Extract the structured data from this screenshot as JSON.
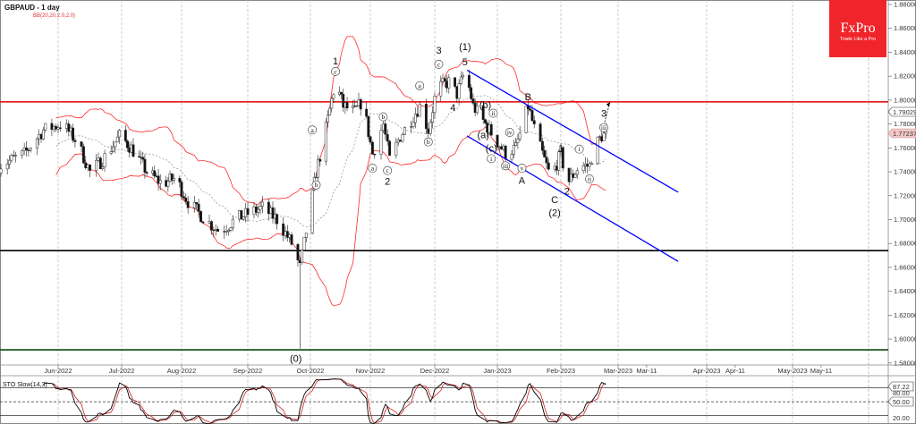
{
  "header": {
    "symbol_title": "GBPAUD - 1 day",
    "indicator_label": "BB(20,20,2.0,2.0)"
  },
  "logo": {
    "brand": "FxPro",
    "tagline": "Trade Like a Pro",
    "color": "#f0252b"
  },
  "stochastic": {
    "label": "STO Slow(14,3)",
    "current_value": "87.22",
    "levels": [
      "80.00",
      "50.00",
      "20.00"
    ]
  },
  "price_tags": {
    "upper_band": "1.79029",
    "last_price": "1.77237"
  },
  "colors": {
    "bollinger": "#ff2a2a",
    "resistance": "#e00000",
    "support": "#000000",
    "base_line": "#0a4a0a",
    "channel": "#0000ff",
    "stoch_main": "#000000",
    "stoch_signal": "#d02020",
    "ma": "#7a7a7a"
  },
  "chart_data": {
    "type": "candlestick",
    "title": "GBPAUD - 1 day",
    "ylim": [
      1.575,
      1.885
    ],
    "y_ticks": [
      "1.88000",
      "1.86000",
      "1.84000",
      "1.82000",
      "1.80000",
      "1.78000",
      "1.76000",
      "1.74000",
      "1.72000",
      "1.70000",
      "1.68000",
      "1.66000",
      "1.64000",
      "1.62000",
      "1.60000",
      "1.58000"
    ],
    "x_ticks": [
      {
        "date": "2022-06-01",
        "label": "Jun-2022",
        "grid": true
      },
      {
        "date": "2022-07-01",
        "label": "Jul-2022",
        "grid": true
      },
      {
        "date": "2022-08-01",
        "label": "Aug-2022",
        "grid": true
      },
      {
        "date": "2022-09-01",
        "label": "Sep-2022",
        "grid": true
      },
      {
        "date": "2022-10-01",
        "label": "Oct-2022",
        "grid": true
      },
      {
        "date": "2022-11-01",
        "label": "Nov-2022",
        "grid": true
      },
      {
        "date": "2022-12-01",
        "label": "Dec-2022",
        "grid": true
      },
      {
        "date": "2023-01-01",
        "label": "Jan-2023",
        "grid": true
      },
      {
        "date": "2023-02-01",
        "label": "Feb-2023",
        "grid": true
      },
      {
        "date": "2023-03-01",
        "label": "Mar-2023",
        "grid": true
      },
      {
        "date": "2023-03-11",
        "label": "Mar-11",
        "grid": false
      },
      {
        "date": "2023-04-01",
        "label": "Apr-2023",
        "grid": true
      },
      {
        "date": "2023-04-11",
        "label": "Apr-11",
        "grid": false
      },
      {
        "date": "2023-05-01",
        "label": "May-2023",
        "grid": true
      },
      {
        "date": "2023-05-11",
        "label": "May-11",
        "grid": false
      }
    ],
    "approx_close_path": [
      [
        "2022-05-04",
        1.745
      ],
      [
        "2022-05-16",
        1.755
      ],
      [
        "2022-05-25",
        1.775
      ],
      [
        "2022-06-03",
        1.78
      ],
      [
        "2022-06-10",
        1.765
      ],
      [
        "2022-06-16",
        1.74
      ],
      [
        "2022-06-22",
        1.75
      ],
      [
        "2022-06-30",
        1.77
      ],
      [
        "2022-07-06",
        1.76
      ],
      [
        "2022-07-14",
        1.74
      ],
      [
        "2022-07-22",
        1.73
      ],
      [
        "2022-07-29",
        1.735
      ],
      [
        "2022-08-04",
        1.715
      ],
      [
        "2022-08-12",
        1.7
      ],
      [
        "2022-08-19",
        1.69
      ],
      [
        "2022-08-26",
        1.7
      ],
      [
        "2022-09-01",
        1.705
      ],
      [
        "2022-09-08",
        1.71
      ],
      [
        "2022-09-15",
        1.7
      ],
      [
        "2022-09-22",
        1.68
      ],
      [
        "2022-09-26",
        1.66
      ],
      [
        "2022-09-28",
        1.68
      ],
      [
        "2022-10-04",
        1.74
      ],
      [
        "2022-10-07",
        1.76
      ],
      [
        "2022-10-12",
        1.8
      ],
      [
        "2022-10-14",
        1.815
      ],
      [
        "2022-10-18",
        1.795
      ],
      [
        "2022-10-24",
        1.79
      ],
      [
        "2022-10-28",
        1.8
      ],
      [
        "2022-11-02",
        1.755
      ],
      [
        "2022-11-07",
        1.78
      ],
      [
        "2022-11-10",
        1.75
      ],
      [
        "2022-11-15",
        1.77
      ],
      [
        "2022-11-24",
        1.795
      ],
      [
        "2022-11-28",
        1.775
      ],
      [
        "2022-12-02",
        1.81
      ],
      [
        "2022-12-08",
        1.815
      ],
      [
        "2022-12-12",
        1.805
      ],
      [
        "2022-12-16",
        1.825
      ],
      [
        "2022-12-20",
        1.795
      ],
      [
        "2022-12-28",
        1.775
      ],
      [
        "2023-01-05",
        1.755
      ],
      [
        "2023-01-10",
        1.76
      ],
      [
        "2023-01-16",
        1.795
      ],
      [
        "2023-01-20",
        1.77
      ],
      [
        "2023-01-27",
        1.735
      ],
      [
        "2023-02-01",
        1.755
      ],
      [
        "2023-02-04",
        1.73
      ],
      [
        "2023-02-10",
        1.745
      ],
      [
        "2023-02-15",
        1.745
      ],
      [
        "2023-02-17",
        1.76
      ],
      [
        "2023-02-21",
        1.77
      ],
      [
        "2023-02-24",
        1.77237
      ]
    ],
    "spike_low": {
      "date": "2022-09-26",
      "price": 1.592
    },
    "bollinger": {
      "period": 20,
      "deviations": 2
    },
    "horizontal_levels": [
      {
        "price": 1.7985,
        "color": "#e00000"
      },
      {
        "price": 1.674,
        "color": "#000000"
      },
      {
        "price": 1.591,
        "color": "#0a4a0a"
      }
    ],
    "channel": [
      {
        "from": [
          "2022-12-17",
          1.825
        ],
        "to": [
          "2023-03-22",
          1.723
        ]
      },
      {
        "from": [
          "2022-12-17",
          1.77
        ],
        "to": [
          "2023-03-22",
          1.665
        ]
      }
    ],
    "projection_arrow": {
      "from": [
        "2023-02-22",
        1.779
      ],
      "to": [
        "2023-02-25",
        1.798
      ]
    },
    "wave_labels": [
      {
        "text": "1",
        "date": "2022-10-14",
        "price": 1.833,
        "circled": false
      },
      {
        "text": "c",
        "date": "2022-10-14",
        "price": 1.824,
        "circled": true
      },
      {
        "text": "a",
        "date": "2022-10-02",
        "price": 1.775,
        "circled": true
      },
      {
        "text": "b",
        "date": "2022-10-04",
        "price": 1.729,
        "circled": true
      },
      {
        "text": "(0)",
        "date": "2022-09-24",
        "price": 1.584,
        "circled": false
      },
      {
        "text": "a",
        "date": "2022-11-02",
        "price": 1.743,
        "circled": true
      },
      {
        "text": "b",
        "date": "2022-11-07",
        "price": 1.786,
        "circled": true
      },
      {
        "text": "c",
        "date": "2022-11-09",
        "price": 1.741,
        "circled": true
      },
      {
        "text": "2",
        "date": "2022-11-09",
        "price": 1.732,
        "circled": false
      },
      {
        "text": "a",
        "date": "2022-11-24",
        "price": 1.812,
        "circled": true
      },
      {
        "text": "b",
        "date": "2022-11-28",
        "price": 1.765,
        "circled": true
      },
      {
        "text": "3",
        "date": "2022-12-03",
        "price": 1.842,
        "circled": false
      },
      {
        "text": "c",
        "date": "2022-12-03",
        "price": 1.83,
        "circled": true
      },
      {
        "text": "(1)",
        "date": "2022-12-16",
        "price": 1.845,
        "circled": false
      },
      {
        "text": "5",
        "date": "2022-12-16",
        "price": 1.832,
        "circled": false
      },
      {
        "text": "4",
        "date": "2022-12-10",
        "price": 1.794,
        "circled": false
      },
      {
        "text": "(b)",
        "date": "2022-12-26",
        "price": 1.796,
        "circled": false
      },
      {
        "text": "ii",
        "date": "2022-12-30",
        "price": 1.789,
        "circled": true
      },
      {
        "text": "(a)",
        "date": "2022-12-25",
        "price": 1.771,
        "circled": false
      },
      {
        "text": "(c)",
        "date": "2022-12-29",
        "price": 1.76,
        "circled": false
      },
      {
        "text": "i",
        "date": "2022-12-29",
        "price": 1.751,
        "circled": true
      },
      {
        "text": "iii",
        "date": "2023-01-05",
        "price": 1.745,
        "circled": true
      },
      {
        "text": "iv",
        "date": "2023-01-07",
        "price": 1.773,
        "circled": true
      },
      {
        "text": "v",
        "date": "2023-01-13",
        "price": 1.743,
        "circled": true
      },
      {
        "text": "A",
        "date": "2023-01-13",
        "price": 1.733,
        "circled": false
      },
      {
        "text": "B",
        "date": "2023-01-16",
        "price": 1.803,
        "circled": false
      },
      {
        "text": "1",
        "date": "2023-02-01",
        "price": 1.76,
        "circled": false
      },
      {
        "text": "C",
        "date": "2023-01-29",
        "price": 1.717,
        "circled": false
      },
      {
        "text": "(2)",
        "date": "2023-01-29",
        "price": 1.706,
        "circled": false
      },
      {
        "text": "2",
        "date": "2023-02-04",
        "price": 1.724,
        "circled": false
      },
      {
        "text": "i",
        "date": "2023-02-10",
        "price": 1.759,
        "circled": true
      },
      {
        "text": "ii",
        "date": "2023-02-15",
        "price": 1.734,
        "circled": true
      },
      {
        "text": "iii",
        "date": "2023-02-22",
        "price": 1.777,
        "circled": true
      },
      {
        "text": "3",
        "date": "2023-02-22",
        "price": 1.789,
        "circled": false
      }
    ],
    "stoch_ylim": [
      0,
      100
    ],
    "stoch_params": {
      "k": 14,
      "slowing": 3
    }
  }
}
